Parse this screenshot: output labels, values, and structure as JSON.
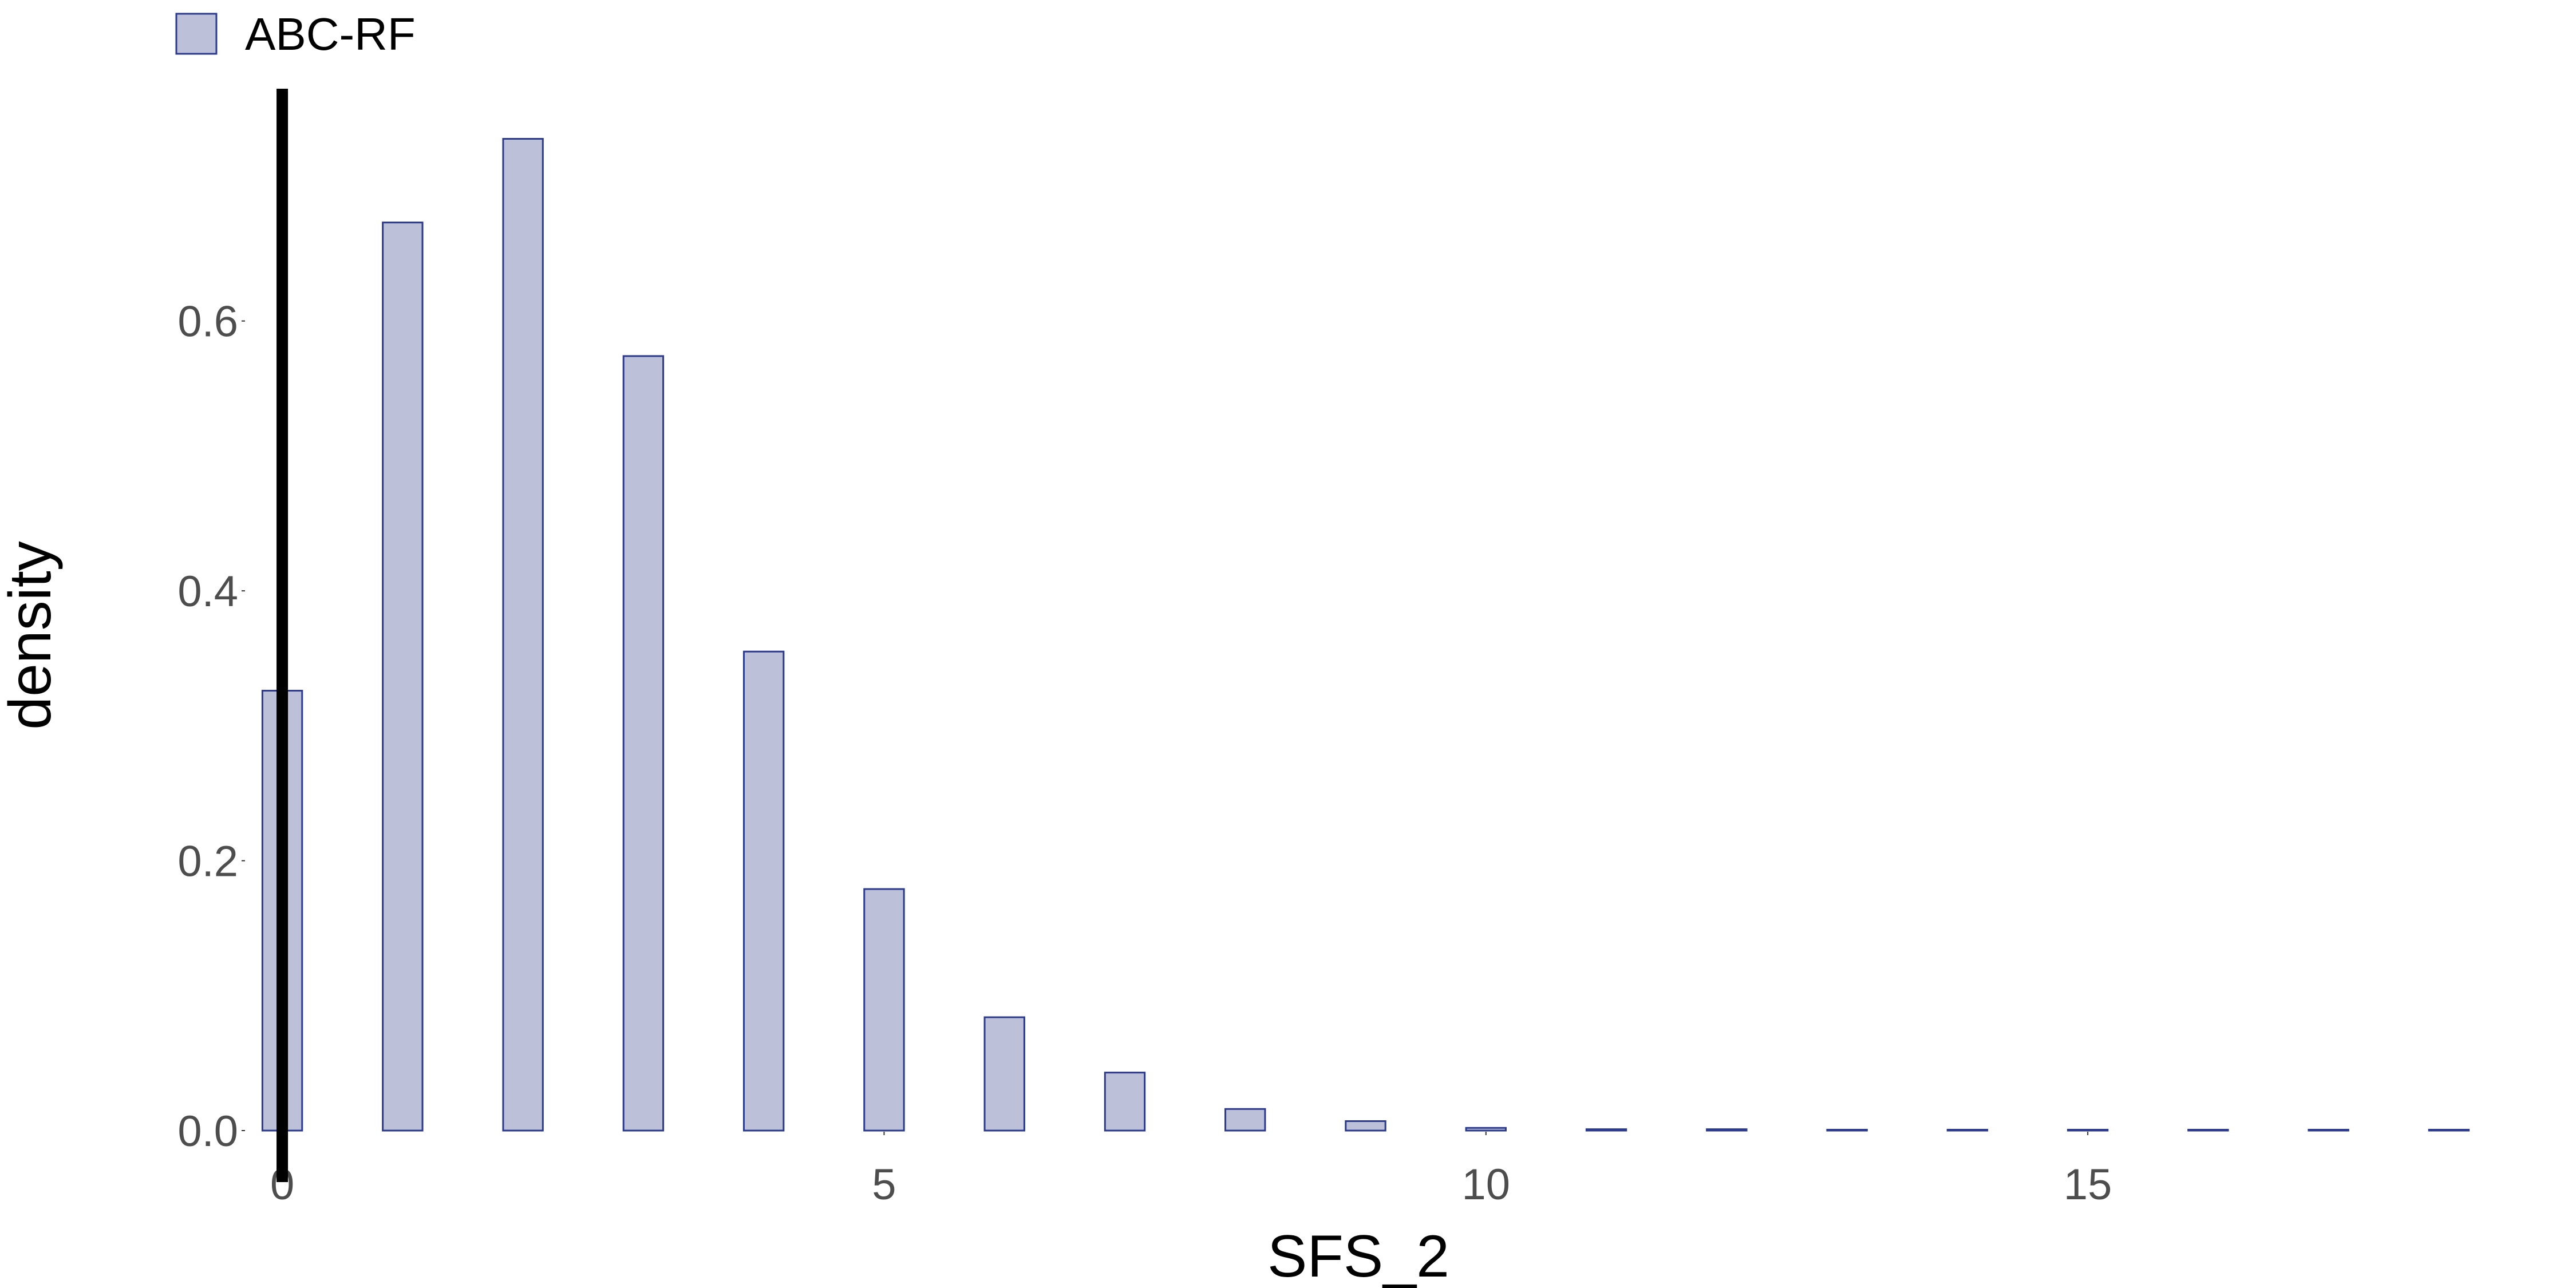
{
  "chart_data": {
    "type": "bar",
    "title": "",
    "xlabel": "SFS_2",
    "ylabel": "density",
    "x": [
      0,
      1,
      2,
      3,
      4,
      5,
      6,
      7,
      8,
      9,
      10,
      11,
      12,
      13,
      14,
      15,
      16,
      17,
      18
    ],
    "series": [
      {
        "name": "ABC-RF",
        "values": [
          0.326,
          0.673,
          0.735,
          0.574,
          0.355,
          0.179,
          0.084,
          0.043,
          0.016,
          0.007,
          0.002,
          0.001,
          0.001,
          0.0,
          0.0,
          0.0,
          0.0005,
          0.0,
          0.0005
        ]
      }
    ],
    "xlim": [
      -0.3,
      18.2
    ],
    "ylim": [
      0,
      0.77
    ],
    "xticks": [
      0,
      5,
      10,
      15
    ],
    "yticks": [
      0.0,
      0.2,
      0.4,
      0.6
    ],
    "xtick_labels": [
      "0",
      "5",
      "10",
      "15"
    ],
    "ytick_labels": [
      "0.0",
      "0.2",
      "0.4",
      "0.6"
    ],
    "observed_value": 0,
    "grid": false,
    "legend_position": "top-left",
    "colors": {
      "bar_fill": "#bcc0d8",
      "bar_stroke": "#2b3a8c",
      "observed_line": "#000000"
    }
  }
}
